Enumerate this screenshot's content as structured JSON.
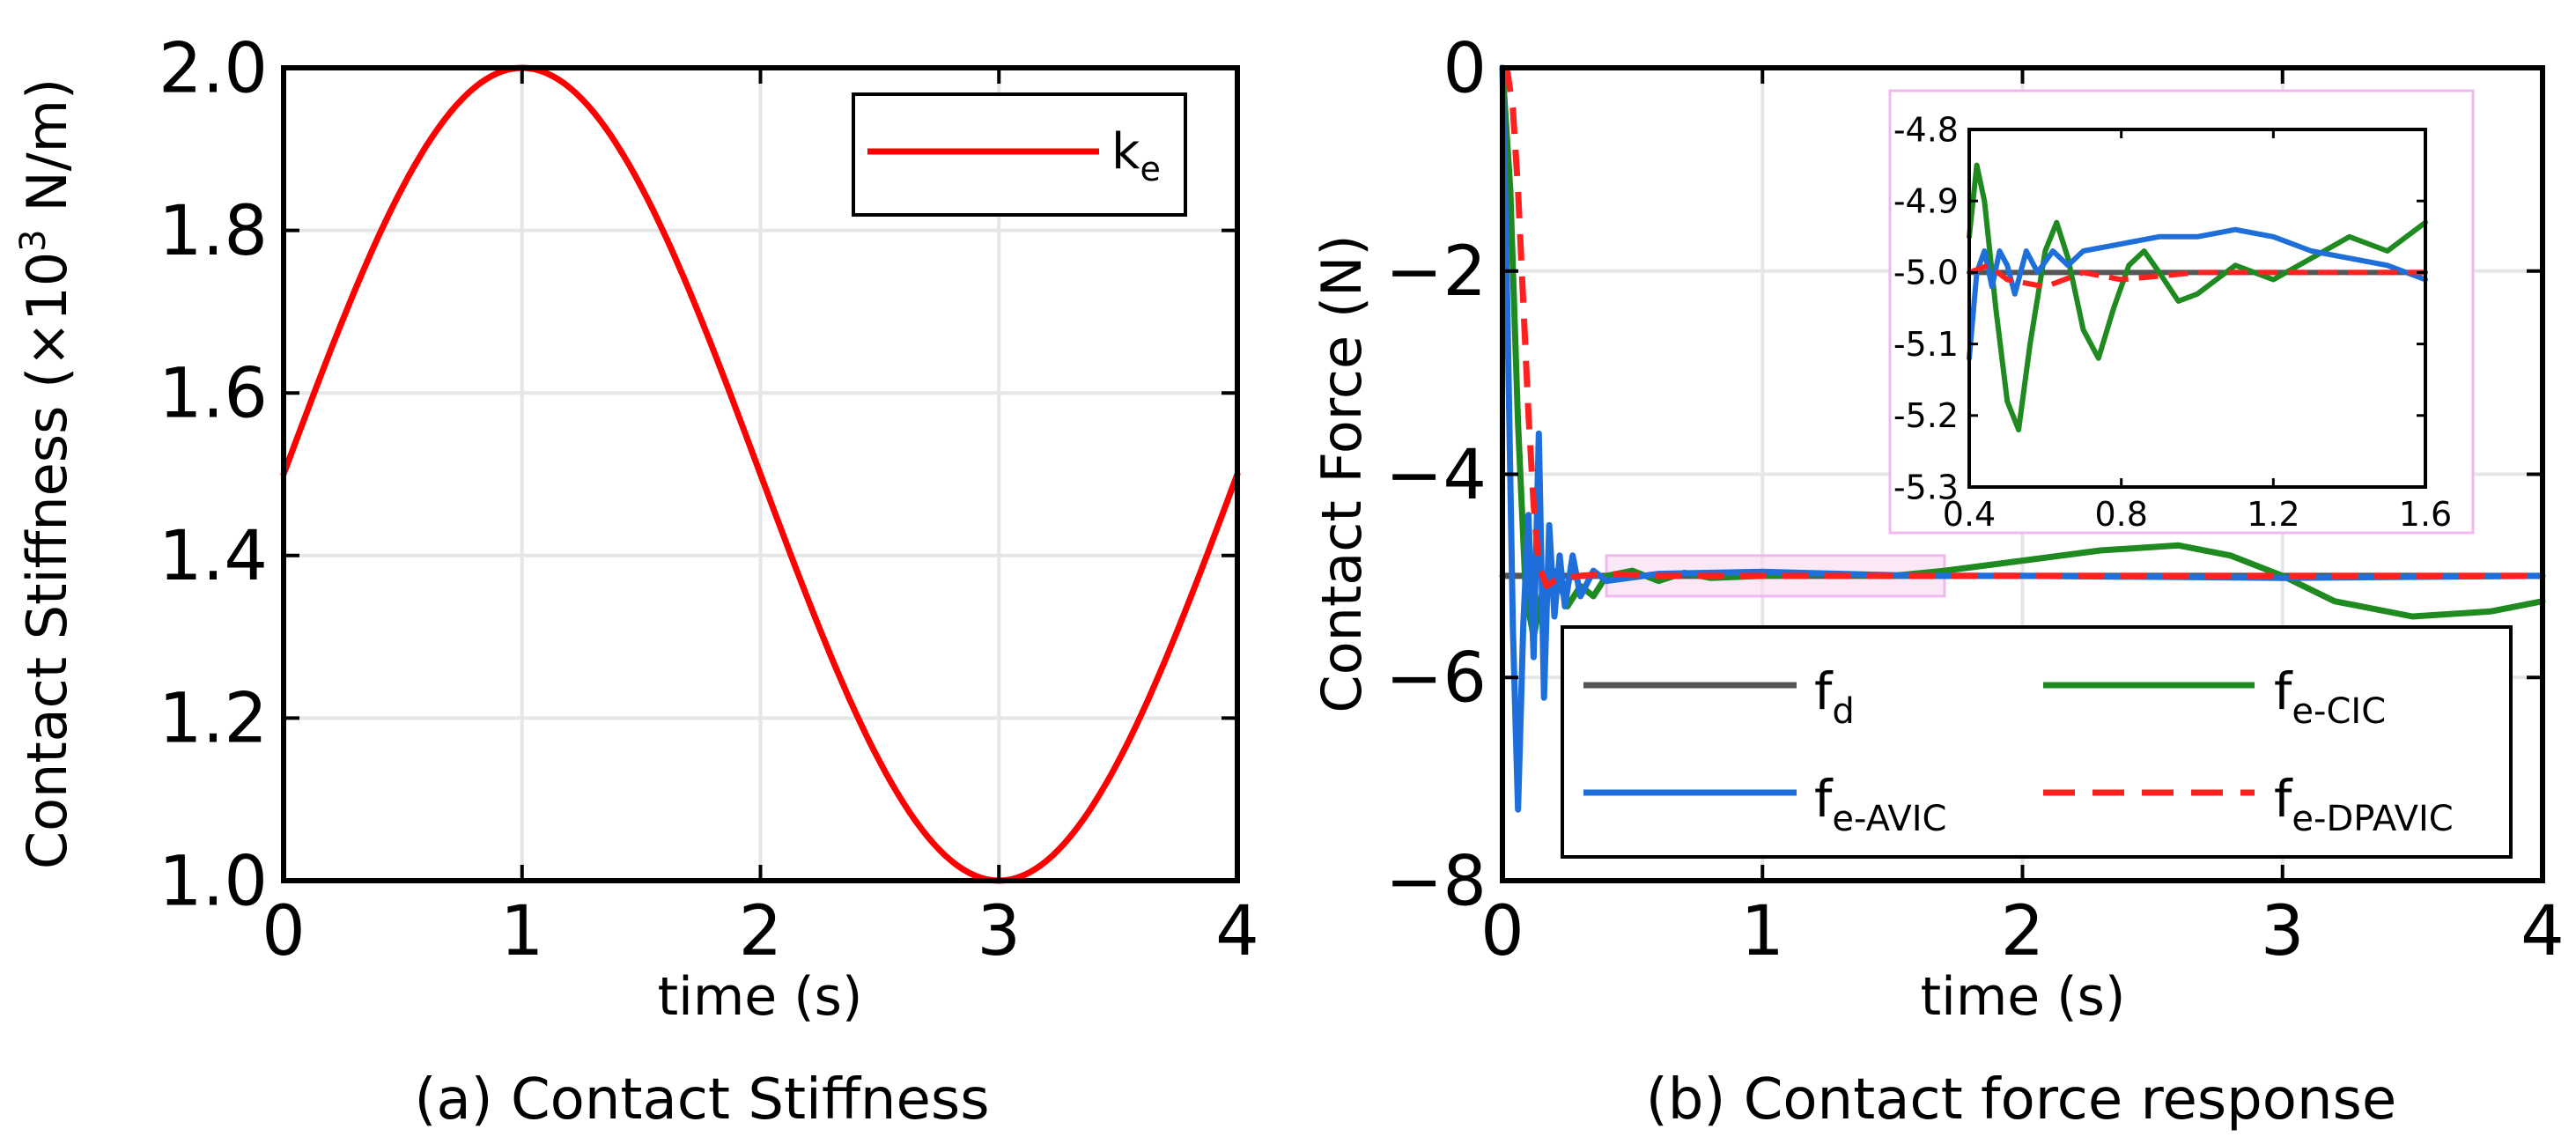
{
  "chart_data": [
    {
      "type": "line",
      "caption": "(a) Contact Stiffness",
      "xlabel": "time (s)",
      "ylabel_prefix": "Contact Stiffness (×10",
      "ylabel_sup": "3",
      "ylabel_suffix": " N/m)",
      "xlim": [
        0,
        4
      ],
      "ylim": [
        1.0,
        2.0
      ],
      "xticks": [
        0,
        1,
        2,
        3,
        4
      ],
      "xtick_labels": [
        "0",
        "1",
        "2",
        "3",
        "4"
      ],
      "yticks": [
        1.0,
        1.2,
        1.4,
        1.6,
        1.8,
        2.0
      ],
      "ytick_labels": [
        "1.0",
        "1.2",
        "1.4",
        "1.6",
        "1.8",
        "2.0"
      ],
      "grid": true,
      "legend_position": "top-right",
      "series": [
        {
          "name": "k",
          "subscript": "e",
          "color": "#ff0000",
          "style": "solid",
          "x": [
            0,
            0.25,
            0.5,
            0.75,
            1.0,
            1.25,
            1.5,
            1.75,
            2.0,
            2.25,
            2.5,
            2.75,
            3.0,
            3.25,
            3.5,
            3.75,
            4.0
          ],
          "y": [
            1.5,
            1.691,
            1.854,
            1.962,
            2.0,
            1.962,
            1.854,
            1.691,
            1.5,
            1.309,
            1.146,
            1.038,
            1.0,
            1.038,
            1.146,
            1.309,
            1.5
          ]
        }
      ]
    },
    {
      "type": "line",
      "caption": "(b) Contact force response",
      "xlabel": "time (s)",
      "ylabel": "Contact Force (N)",
      "xlim": [
        0,
        4
      ],
      "ylim": [
        -8,
        0
      ],
      "xticks": [
        0,
        1,
        2,
        3,
        4
      ],
      "xtick_labels": [
        "0",
        "1",
        "2",
        "3",
        "4"
      ],
      "yticks": [
        -8,
        -6,
        -4,
        -2,
        0
      ],
      "ytick_labels": [
        "−8",
        "−6",
        "−4",
        "−2",
        "0"
      ],
      "grid": true,
      "legend_position": "bottom-right",
      "zoom_region": {
        "x": [
          0.4,
          1.7
        ],
        "y": [
          -5.2,
          -4.8
        ]
      },
      "series": [
        {
          "name": "f",
          "subscript": "d",
          "color": "#555555",
          "style": "solid",
          "x": [
            0,
            4
          ],
          "y": [
            -5,
            -5
          ]
        },
        {
          "name": "f",
          "subscript": "e-CIC",
          "color": "#1f8a1f",
          "style": "solid",
          "x": [
            0,
            0.03,
            0.06,
            0.09,
            0.12,
            0.15,
            0.18,
            0.21,
            0.25,
            0.3,
            0.35,
            0.4,
            0.5,
            0.6,
            0.7,
            0.8,
            1.0,
            1.2,
            1.5,
            1.7,
            2.0,
            2.3,
            2.6,
            2.8,
            3.0,
            3.2,
            3.5,
            3.8,
            4.0
          ],
          "y": [
            0,
            -1.2,
            -3.5,
            -5.2,
            -5.6,
            -5.2,
            -4.9,
            -5.0,
            -5.3,
            -5.1,
            -5.2,
            -5.0,
            -4.95,
            -5.05,
            -4.97,
            -5.02,
            -5.0,
            -4.98,
            -5.0,
            -4.95,
            -4.85,
            -4.75,
            -4.7,
            -4.8,
            -5.0,
            -5.25,
            -5.4,
            -5.35,
            -5.25
          ]
        },
        {
          "name": "f",
          "subscript": "e-AVIC",
          "color": "#1e6fd9",
          "style": "solid",
          "x": [
            0,
            0.02,
            0.04,
            0.06,
            0.08,
            0.1,
            0.12,
            0.14,
            0.16,
            0.18,
            0.2,
            0.22,
            0.24,
            0.27,
            0.3,
            0.35,
            0.4,
            0.6,
            1.0,
            1.6,
            2.0,
            3.0,
            4.0
          ],
          "y": [
            0,
            -2.5,
            -5.5,
            -7.3,
            -5.5,
            -4.4,
            -5.8,
            -3.6,
            -6.2,
            -4.5,
            -5.4,
            -4.8,
            -5.3,
            -4.8,
            -5.2,
            -4.95,
            -5.05,
            -4.98,
            -4.96,
            -5.0,
            -5.0,
            -5.02,
            -5.0
          ]
        },
        {
          "name": "f",
          "subscript": "e-DPAVIC",
          "color": "#ff2020",
          "style": "dashed",
          "x": [
            0,
            0.02,
            0.04,
            0.06,
            0.08,
            0.1,
            0.12,
            0.14,
            0.17,
            0.2,
            0.25,
            0.3,
            0.4,
            0.6,
            1.0,
            2.0,
            3.0,
            4.0
          ],
          "y": [
            0,
            -0.05,
            -0.4,
            -1.2,
            -2.3,
            -3.4,
            -4.3,
            -4.9,
            -5.1,
            -5.05,
            -5.02,
            -5.0,
            -4.98,
            -5.0,
            -5.0,
            -5.0,
            -5.0,
            -5.0
          ]
        }
      ],
      "inset": {
        "xlim": [
          0.4,
          1.6
        ],
        "ylim": [
          -5.3,
          -4.8
        ],
        "xticks": [
          0.4,
          0.8,
          1.2,
          1.6
        ],
        "xtick_labels": [
          "0.4",
          "0.8",
          "1.2",
          "1.6"
        ],
        "yticks": [
          -5.3,
          -5.2,
          -5.1,
          -5.0,
          -4.9,
          -4.8
        ],
        "ytick_labels": [
          "-5.3",
          "-5.2",
          "-5.1",
          "-5.0",
          "-4.9",
          "-4.8"
        ],
        "series": [
          {
            "ref": "f_d",
            "color": "#555555",
            "style": "solid",
            "x": [
              0.4,
              1.6
            ],
            "y": [
              -5.0,
              -5.0
            ]
          },
          {
            "ref": "f_e-CIC",
            "color": "#1f8a1f",
            "style": "solid",
            "x": [
              0.4,
              0.42,
              0.44,
              0.47,
              0.5,
              0.53,
              0.56,
              0.6,
              0.63,
              0.66,
              0.7,
              0.74,
              0.78,
              0.82,
              0.86,
              0.9,
              0.95,
              1.0,
              1.05,
              1.1,
              1.15,
              1.2,
              1.3,
              1.4,
              1.5,
              1.6
            ],
            "y": [
              -4.95,
              -4.85,
              -4.9,
              -5.05,
              -5.18,
              -5.22,
              -5.1,
              -4.97,
              -4.93,
              -4.98,
              -5.08,
              -5.12,
              -5.05,
              -4.99,
              -4.97,
              -5.0,
              -5.04,
              -5.03,
              -5.01,
              -4.99,
              -5.0,
              -5.01,
              -4.98,
              -4.95,
              -4.97,
              -4.93
            ]
          },
          {
            "ref": "f_e-AVIC",
            "color": "#1e6fd9",
            "style": "solid",
            "x": [
              0.4,
              0.42,
              0.44,
              0.46,
              0.48,
              0.5,
              0.52,
              0.55,
              0.58,
              0.62,
              0.66,
              0.7,
              0.8,
              0.9,
              1.0,
              1.1,
              1.2,
              1.3,
              1.4,
              1.5,
              1.6
            ],
            "y": [
              -5.12,
              -5.0,
              -4.97,
              -5.02,
              -4.97,
              -4.99,
              -5.03,
              -4.97,
              -5.0,
              -4.97,
              -4.99,
              -4.97,
              -4.96,
              -4.95,
              -4.95,
              -4.94,
              -4.95,
              -4.97,
              -4.98,
              -4.99,
              -5.01
            ]
          },
          {
            "ref": "f_e-DPAVIC",
            "color": "#ff2020",
            "style": "dashed",
            "x": [
              0.4,
              0.45,
              0.5,
              0.6,
              0.7,
              0.8,
              1.0,
              1.2,
              1.4,
              1.6
            ],
            "y": [
              -5.0,
              -4.99,
              -5.01,
              -5.02,
              -5.0,
              -5.01,
              -5.0,
              -5.0,
              -5.0,
              -5.0
            ]
          }
        ]
      }
    }
  ]
}
